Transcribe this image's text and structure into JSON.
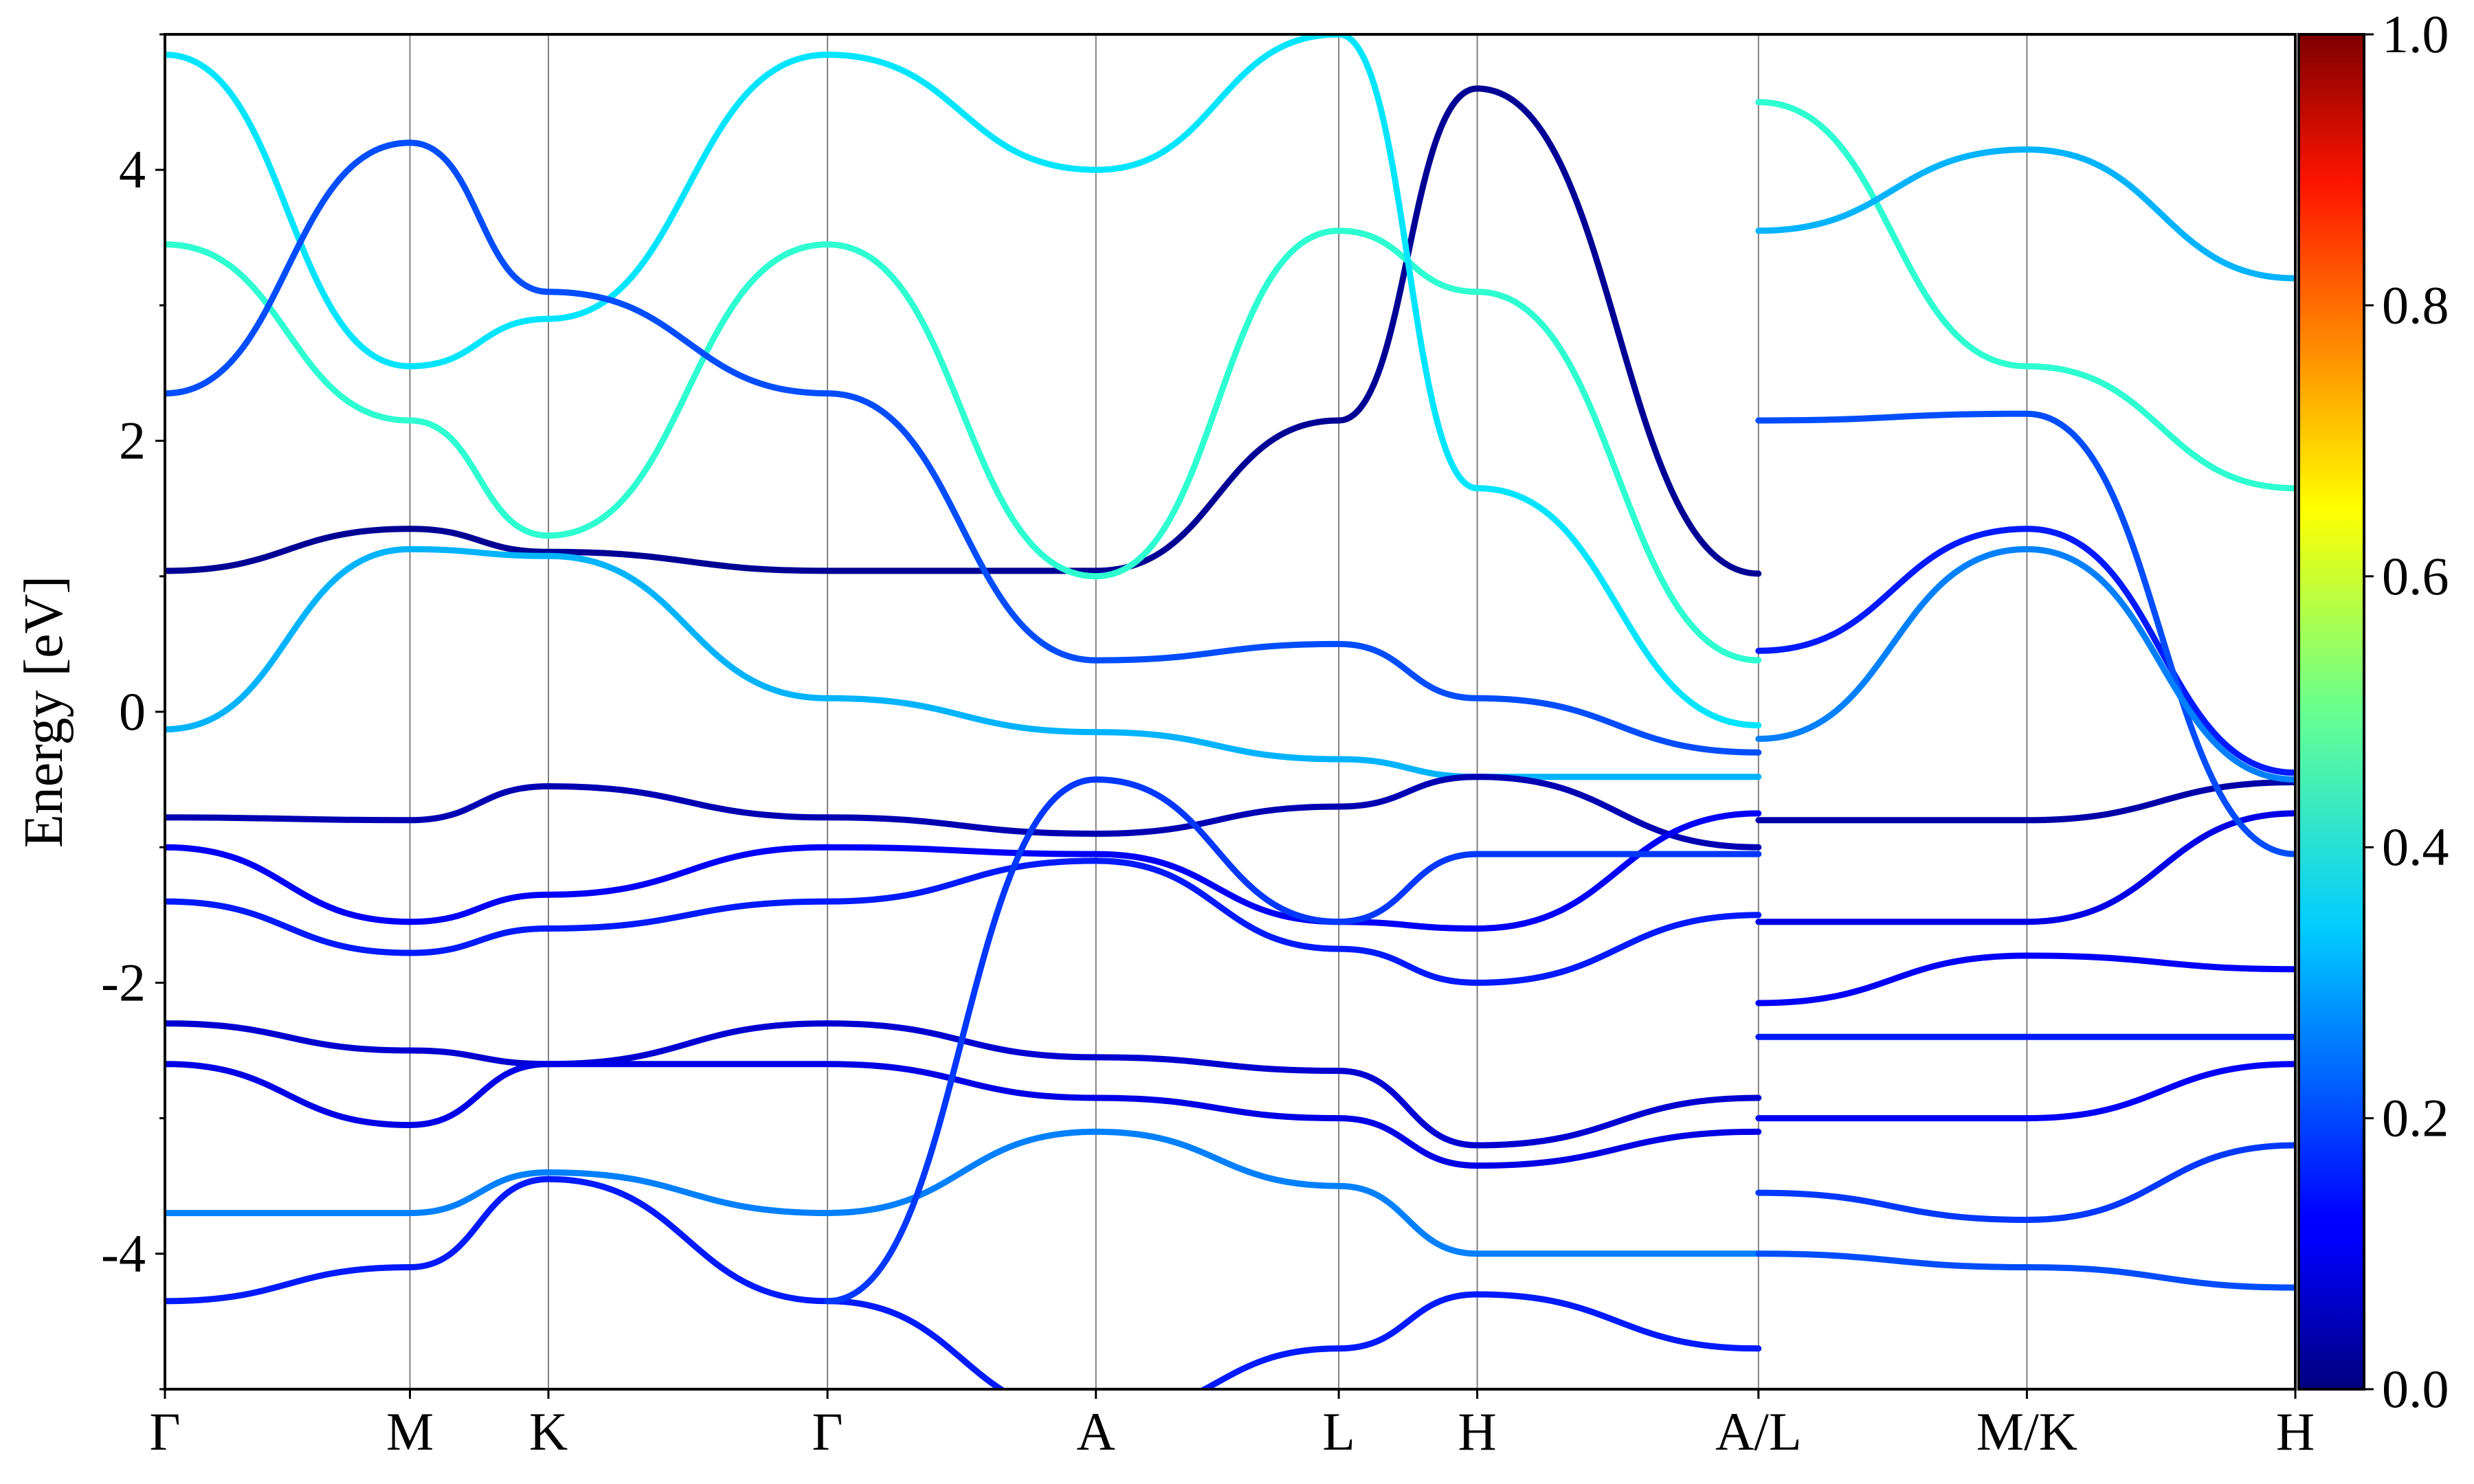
{
  "chart_data": {
    "type": "line",
    "title": "",
    "xlabel": "",
    "ylabel": "Energy [eV]",
    "ylim": [
      -5,
      5
    ],
    "y_ticks": [
      "-4",
      "-2",
      "0",
      "2",
      "4"
    ],
    "kpoints": [
      {
        "label": "Γ",
        "x": 0.0
      },
      {
        "label": "M",
        "x": 0.115
      },
      {
        "label": "K",
        "x": 0.18
      },
      {
        "label": "Γ",
        "x": 0.311
      },
      {
        "label": "A",
        "x": 0.437
      },
      {
        "label": "L",
        "x": 0.551
      },
      {
        "label": "H",
        "x": 0.616
      },
      {
        "label": "A/L",
        "x": 0.748
      },
      {
        "label": "M/K",
        "x": 0.874
      },
      {
        "label": "H",
        "x": 1.0
      }
    ],
    "colorbar": {
      "label": "",
      "range": [
        0.0,
        1.0
      ],
      "ticks": [
        "0.0",
        "0.2",
        "0.4",
        "0.6",
        "0.8",
        "1.0"
      ],
      "colormap": "jet"
    },
    "series": [
      {
        "weight": 0.02,
        "points": [
          [
            0,
            1.04
          ],
          [
            0.115,
            1.35
          ],
          [
            0.18,
            1.18
          ],
          [
            0.311,
            1.04
          ],
          [
            0.437,
            1.04
          ],
          [
            0.551,
            2.15
          ],
          [
            0.616,
            4.6
          ],
          [
            0.748,
            1.02
          ]
        ]
      },
      {
        "weight": 0.3,
        "points": [
          [
            0,
            -0.13
          ],
          [
            0.115,
            1.2
          ],
          [
            0.18,
            1.15
          ],
          [
            0.311,
            0.1
          ],
          [
            0.437,
            -0.15
          ],
          [
            0.551,
            -0.35
          ],
          [
            0.616,
            -0.48
          ],
          [
            0.748,
            -0.48
          ]
        ]
      },
      {
        "weight": 0.42,
        "points": [
          [
            0,
            3.45
          ],
          [
            0.115,
            2.15
          ],
          [
            0.18,
            1.3
          ],
          [
            0.311,
            3.45
          ],
          [
            0.437,
            1.0
          ],
          [
            0.551,
            3.55
          ],
          [
            0.616,
            3.1
          ],
          [
            0.748,
            0.38
          ]
        ]
      },
      {
        "weight": 0.35,
        "points": [
          [
            0,
            4.85
          ],
          [
            0.115,
            2.55
          ],
          [
            0.18,
            2.9
          ],
          [
            0.311,
            4.85
          ],
          [
            0.437,
            4.0
          ],
          [
            0.551,
            5.0
          ],
          [
            0.616,
            1.65
          ],
          [
            0.748,
            -0.1
          ]
        ]
      },
      {
        "weight": 0.2,
        "points": [
          [
            0,
            2.35
          ],
          [
            0.115,
            4.2
          ],
          [
            0.18,
            3.1
          ],
          [
            0.311,
            2.35
          ],
          [
            0.437,
            0.38
          ],
          [
            0.551,
            0.5
          ],
          [
            0.616,
            0.1
          ],
          [
            0.748,
            -0.3
          ]
        ]
      },
      {
        "weight": 0.05,
        "points": [
          [
            0,
            -0.78
          ],
          [
            0.115,
            -0.8
          ],
          [
            0.18,
            -0.55
          ],
          [
            0.311,
            -0.78
          ],
          [
            0.437,
            -0.9
          ],
          [
            0.551,
            -0.7
          ],
          [
            0.616,
            -0.48
          ],
          [
            0.748,
            -1.0
          ]
        ]
      },
      {
        "weight": 0.12,
        "points": [
          [
            0,
            -1.0
          ],
          [
            0.115,
            -1.55
          ],
          [
            0.18,
            -1.35
          ],
          [
            0.311,
            -1.0
          ],
          [
            0.437,
            -1.05
          ],
          [
            0.551,
            -1.55
          ],
          [
            0.616,
            -1.6
          ],
          [
            0.748,
            -0.75
          ]
        ]
      },
      {
        "weight": 0.15,
        "points": [
          [
            0,
            -1.4
          ],
          [
            0.115,
            -1.78
          ],
          [
            0.18,
            -1.6
          ],
          [
            0.311,
            -1.4
          ],
          [
            0.437,
            -1.1
          ],
          [
            0.551,
            -1.75
          ],
          [
            0.616,
            -2.0
          ],
          [
            0.748,
            -1.5
          ]
        ]
      },
      {
        "weight": 0.08,
        "points": [
          [
            0,
            -2.3
          ],
          [
            0.115,
            -2.5
          ],
          [
            0.18,
            -2.6
          ],
          [
            0.311,
            -2.3
          ],
          [
            0.437,
            -2.55
          ],
          [
            0.551,
            -2.65
          ],
          [
            0.616,
            -3.2
          ],
          [
            0.748,
            -2.85
          ]
        ]
      },
      {
        "weight": 0.1,
        "points": [
          [
            0,
            -2.6
          ],
          [
            0.115,
            -3.05
          ],
          [
            0.18,
            -2.6
          ],
          [
            0.311,
            -2.6
          ],
          [
            0.437,
            -2.85
          ],
          [
            0.551,
            -3.0
          ],
          [
            0.616,
            -3.35
          ],
          [
            0.748,
            -3.1
          ]
        ]
      },
      {
        "weight": 0.25,
        "points": [
          [
            0,
            -3.7
          ],
          [
            0.115,
            -3.7
          ],
          [
            0.18,
            -3.4
          ],
          [
            0.311,
            -3.7
          ],
          [
            0.437,
            -3.1
          ],
          [
            0.551,
            -3.5
          ],
          [
            0.616,
            -4.0
          ],
          [
            0.748,
            -4.0
          ]
        ]
      },
      {
        "weight": 0.15,
        "points": [
          [
            0,
            -4.35
          ],
          [
            0.115,
            -4.1
          ],
          [
            0.18,
            -3.45
          ],
          [
            0.311,
            -4.35
          ],
          [
            0.437,
            -5.2
          ],
          [
            0.551,
            -4.7
          ],
          [
            0.616,
            -4.3
          ],
          [
            0.748,
            -4.7
          ]
        ]
      },
      {
        "weight": 0.18,
        "points": [
          [
            0.311,
            -4.35
          ],
          [
            0.437,
            -0.5
          ],
          [
            0.551,
            -1.55
          ],
          [
            0.616,
            -1.05
          ],
          [
            0.748,
            -1.05
          ]
        ]
      },
      {
        "weight": 0.04,
        "points": [
          [
            0.748,
            -0.8
          ],
          [
            0.874,
            -0.8
          ],
          [
            1.0,
            -0.52
          ]
        ]
      },
      {
        "weight": 0.1,
        "points": [
          [
            0.748,
            -1.55
          ],
          [
            0.874,
            -1.55
          ],
          [
            1.0,
            -0.75
          ]
        ]
      },
      {
        "weight": 0.12,
        "points": [
          [
            0.748,
            -2.15
          ],
          [
            0.874,
            -1.8
          ],
          [
            1.0,
            -1.9
          ]
        ]
      },
      {
        "weight": 0.15,
        "points": [
          [
            0.748,
            -2.4
          ],
          [
            0.874,
            -2.4
          ],
          [
            1.0,
            -2.4
          ]
        ]
      },
      {
        "weight": 0.12,
        "points": [
          [
            0.748,
            -3.0
          ],
          [
            0.874,
            -3.0
          ],
          [
            1.0,
            -2.6
          ]
        ]
      },
      {
        "weight": 0.18,
        "points": [
          [
            0.748,
            -3.55
          ],
          [
            0.874,
            -3.75
          ],
          [
            1.0,
            -3.2
          ]
        ]
      },
      {
        "weight": 0.2,
        "points": [
          [
            0.748,
            -4.0
          ],
          [
            0.874,
            -4.1
          ],
          [
            1.0,
            -4.25
          ]
        ]
      },
      {
        "weight": 0.15,
        "points": [
          [
            0.748,
            0.45
          ],
          [
            0.874,
            1.35
          ],
          [
            1.0,
            -0.45
          ]
        ]
      },
      {
        "weight": 0.2,
        "points": [
          [
            0.748,
            2.15
          ],
          [
            0.874,
            2.2
          ],
          [
            1.0,
            -1.05
          ]
        ]
      },
      {
        "weight": 0.42,
        "points": [
          [
            0.748,
            4.5
          ],
          [
            0.874,
            2.55
          ],
          [
            1.0,
            1.65
          ]
        ]
      },
      {
        "weight": 0.3,
        "points": [
          [
            0.748,
            3.55
          ],
          [
            0.874,
            4.15
          ],
          [
            1.0,
            3.2
          ]
        ]
      },
      {
        "weight": 0.25,
        "points": [
          [
            0.748,
            -0.2
          ],
          [
            0.874,
            1.2
          ],
          [
            1.0,
            -0.5
          ]
        ]
      }
    ]
  }
}
